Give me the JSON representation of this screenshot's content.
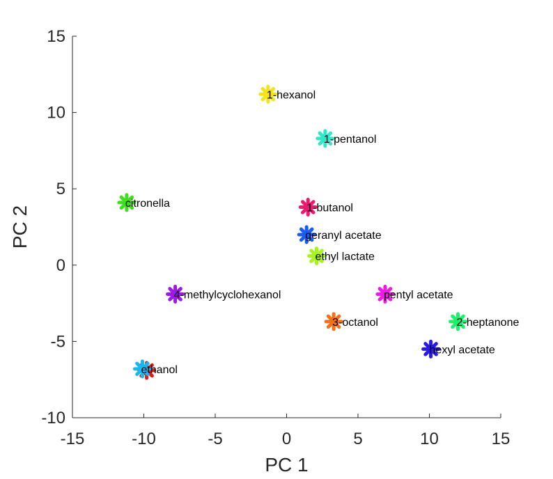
{
  "chart_data": {
    "type": "scatter",
    "xlabel": "PC 1",
    "ylabel": "PC 2",
    "xlim": [
      -15,
      15
    ],
    "ylim": [
      -10,
      15
    ],
    "xticks": [
      "-15",
      "-10",
      "-5",
      "0",
      "5",
      "10",
      "15"
    ],
    "yticks": [
      "-10",
      "-5",
      "0",
      "5",
      "10",
      "15"
    ],
    "marker": "asterisk",
    "grid": false,
    "points": [
      {
        "label": "1-hexanol",
        "x": -1.3,
        "y": 11.2,
        "color": "#f5e21b"
      },
      {
        "label": "1-pentanol",
        "x": 2.7,
        "y": 8.3,
        "color": "#2ee8c8"
      },
      {
        "label": "citronella",
        "x": -11.2,
        "y": 4.1,
        "color": "#3ee01e"
      },
      {
        "label": "1-butanol",
        "x": 1.5,
        "y": 3.8,
        "color": "#f0186e"
      },
      {
        "label": "geranyl acetate",
        "x": 1.4,
        "y": 2.0,
        "color": "#1a5cf0"
      },
      {
        "label": "ethyl lactate",
        "x": 2.1,
        "y": 0.6,
        "color": "#a6f51a"
      },
      {
        "label": "4-methylcyclohexanol",
        "x": -7.8,
        "y": -1.9,
        "color": "#9a1ae8"
      },
      {
        "label": "pentyl acetate",
        "x": 6.9,
        "y": -1.9,
        "color": "#f01ae6"
      },
      {
        "label": "3-octanol",
        "x": 3.3,
        "y": -3.7,
        "color": "#f5701a"
      },
      {
        "label": "2-heptanone",
        "x": 12.0,
        "y": -3.7,
        "color": "#1af06a"
      },
      {
        "label": "hexyl acetate",
        "x": 10.1,
        "y": -5.5,
        "color": "#2a1ae8"
      },
      {
        "label": "ethanol",
        "x": -10.1,
        "y": -6.8,
        "color": "#1ab8f0"
      }
    ],
    "extra_markers": [
      {
        "x": -9.8,
        "y": -6.9,
        "color": "#e01a1a"
      }
    ]
  }
}
